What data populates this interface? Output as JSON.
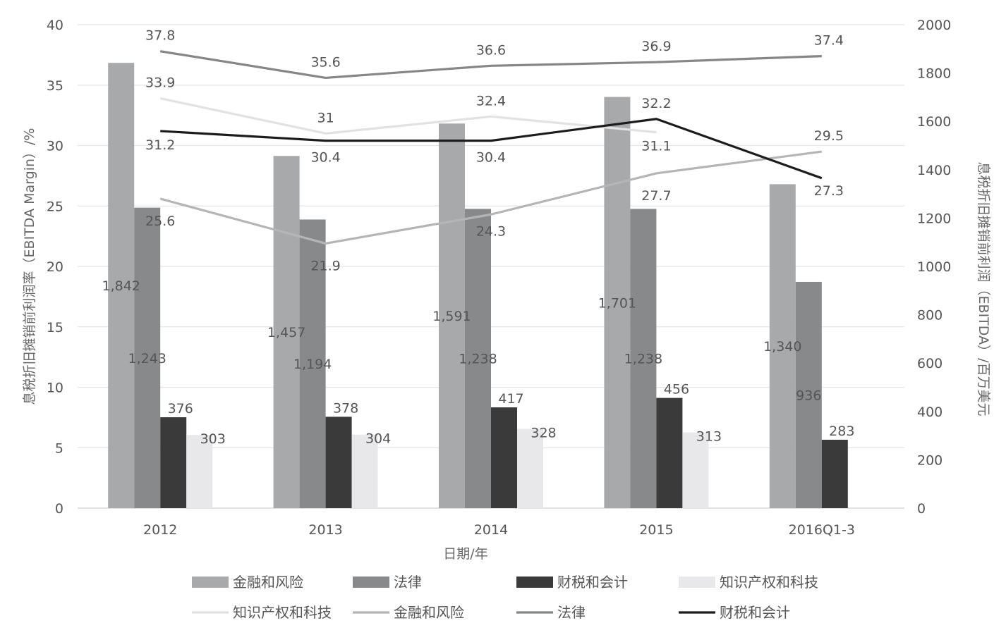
{
  "chart_data": {
    "type": "bar",
    "xlabel": "日期/年",
    "ylabel_left": "息税折旧摊销前利润率（EBITDA Margin）/%",
    "ylabel_right": "息税折旧摊销前利润（EBITDA）/百万美元",
    "categories": [
      "2012",
      "2013",
      "2014",
      "2015",
      "2016Q1-3"
    ],
    "ylim_left": [
      0,
      40
    ],
    "yticks_left": [
      "0",
      "5",
      "10",
      "15",
      "20",
      "25",
      "30",
      "35",
      "40"
    ],
    "ylim_right": [
      0,
      2000
    ],
    "yticks_right": [
      "0",
      "200",
      "400",
      "600",
      "800",
      "1000",
      "1200",
      "1400",
      "1600",
      "1800",
      "2000"
    ],
    "grid": true,
    "legend_position": "bottom",
    "bar_series": [
      {
        "name": "金融和风险",
        "color": "#a8a9ab",
        "values": [
          1842,
          1457,
          1591,
          1701,
          1340
        ],
        "labels": [
          "1,842",
          "1,457",
          "1,591",
          "1,701",
          "1,340"
        ]
      },
      {
        "name": "法律",
        "color": "#88898b",
        "values": [
          1243,
          1194,
          1238,
          1238,
          936
        ],
        "labels": [
          "1,243",
          "1,194",
          "1,238",
          "1,238",
          "936"
        ]
      },
      {
        "name": "财税和会计",
        "color": "#3a3a3a",
        "values": [
          376,
          378,
          417,
          456,
          283
        ],
        "labels": [
          "376",
          "378",
          "417",
          "456",
          "283"
        ]
      },
      {
        "name": "知识产权和科技",
        "color": "#e8e8ea",
        "values": [
          303,
          304,
          328,
          313,
          null
        ],
        "labels": [
          "303",
          "304",
          "328",
          "313",
          ""
        ]
      }
    ],
    "line_series": [
      {
        "name": "知识产权和科技",
        "color": "#e2e2e2",
        "values": [
          33.9,
          31,
          32.4,
          31.1,
          null
        ],
        "labels": [
          "33.9",
          "31",
          "32.4",
          "31.1",
          ""
        ]
      },
      {
        "name": "金融和风险",
        "color": "#b4b5b7",
        "values": [
          25.6,
          21.9,
          24.3,
          27.7,
          29.5
        ],
        "labels": [
          "25.6",
          "21.9",
          "24.3",
          "27.7",
          "29.5"
        ]
      },
      {
        "name": "法律",
        "color": "#858688",
        "values": [
          37.8,
          35.6,
          36.6,
          36.9,
          37.4
        ],
        "labels": [
          "37.8",
          "35.6",
          "36.6",
          "36.9",
          "37.4"
        ]
      },
      {
        "name": "财税和会计",
        "color": "#1c1c1c",
        "values": [
          31.2,
          30.4,
          30.4,
          32.2,
          27.3
        ],
        "labels": [
          "31.2",
          "30.4",
          "30.4",
          "32.2",
          "27.3"
        ]
      }
    ]
  }
}
